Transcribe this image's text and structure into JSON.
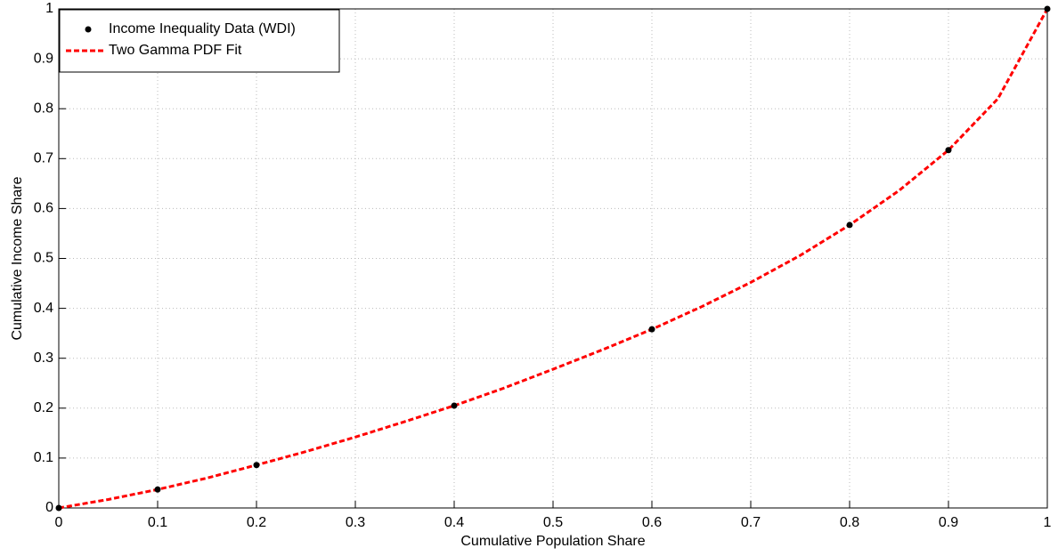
{
  "chart_data": {
    "type": "line",
    "x_label": "Cumulative Population Share",
    "y_label": "Cumulative Income Share",
    "xlim": [
      0,
      1
    ],
    "ylim": [
      0,
      1
    ],
    "xticks": [
      0,
      0.1,
      0.2,
      0.3,
      0.4,
      0.5,
      0.6,
      0.7,
      0.8,
      0.9,
      1
    ],
    "yticks": [
      0,
      0.1,
      0.2,
      0.3,
      0.4,
      0.5,
      0.6,
      0.7,
      0.8,
      0.9,
      1
    ],
    "grid": true,
    "legend": "upper left",
    "series": [
      {
        "name": "Income Inequality Data (WDI)",
        "color": "#000000",
        "style": "markers",
        "x": [
          0,
          0.1,
          0.2,
          0.4,
          0.6,
          0.8,
          0.9,
          1
        ],
        "values": [
          0,
          0.037,
          0.086,
          0.205,
          0.358,
          0.567,
          0.717,
          1
        ]
      },
      {
        "name": "Two Gamma PDF Fit",
        "color": "#ff0000",
        "style": "dashed",
        "x": [
          0,
          0.05,
          0.1,
          0.15,
          0.2,
          0.25,
          0.3,
          0.35,
          0.4,
          0.45,
          0.5,
          0.55,
          0.6,
          0.65,
          0.7,
          0.75,
          0.8,
          0.85,
          0.9,
          0.95,
          1
        ],
        "values": [
          0,
          0.017,
          0.037,
          0.06,
          0.086,
          0.113,
          0.142,
          0.173,
          0.205,
          0.24,
          0.278,
          0.317,
          0.358,
          0.403,
          0.452,
          0.506,
          0.567,
          0.636,
          0.717,
          0.82,
          1
        ]
      }
    ]
  }
}
